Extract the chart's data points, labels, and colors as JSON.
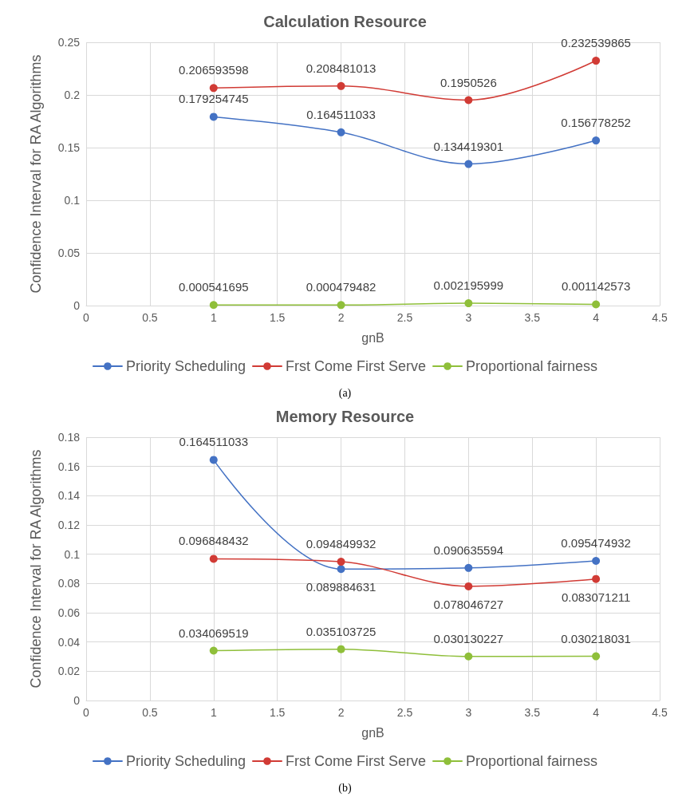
{
  "chart_data": [
    {
      "type": "line",
      "title": "Calculation Resource",
      "xlabel": "gnB",
      "ylabel": "Confidence Interval for RA Algorithms",
      "x": [
        1,
        2,
        3,
        4
      ],
      "xlim": [
        0,
        4.5
      ],
      "xticks": [
        0,
        0.5,
        1,
        1.5,
        2,
        2.5,
        3,
        3.5,
        4,
        4.5
      ],
      "ylim": [
        0,
        0.25
      ],
      "yticks": [
        0,
        0.05,
        0.1,
        0.15,
        0.2,
        0.25
      ],
      "grid": true,
      "legend": "bottom",
      "marker": "circle",
      "data_labels": true,
      "annotations": [
        "(a)"
      ],
      "series": [
        {
          "name": "Priority Scheduling",
          "color": "#4472c4",
          "values": [
            0.179254745,
            0.164511033,
            0.134419301,
            0.156778252
          ]
        },
        {
          "name": "Frst Come First Serve",
          "color": "#d13b35",
          "values": [
            0.206593598,
            0.208481013,
            0.1950526,
            0.232539865
          ]
        },
        {
          "name": "Proportional fairness",
          "color": "#8fbf3a",
          "values": [
            0.000541695,
            0.000479482,
            0.002195999,
            0.001142573
          ]
        }
      ]
    },
    {
      "type": "line",
      "title": "Memory Resource",
      "xlabel": "gnB",
      "ylabel": "Confidence Interval for RA Algorithms",
      "x": [
        1,
        2,
        3,
        4
      ],
      "xlim": [
        0,
        4.5
      ],
      "xticks": [
        0,
        0.5,
        1,
        1.5,
        2,
        2.5,
        3,
        3.5,
        4,
        4.5
      ],
      "ylim": [
        0,
        0.18
      ],
      "yticks": [
        0,
        0.02,
        0.04,
        0.06,
        0.08,
        0.1,
        0.12,
        0.14,
        0.16,
        0.18
      ],
      "grid": true,
      "legend": "bottom",
      "marker": "circle",
      "data_labels": true,
      "annotations": [
        "(b)"
      ],
      "series": [
        {
          "name": "Priority Scheduling",
          "color": "#4472c4",
          "values": [
            0.164511033,
            0.089884631,
            0.090635594,
            0.095474932
          ]
        },
        {
          "name": "Frst Come First Serve",
          "color": "#d13b35",
          "values": [
            0.096848432,
            0.094849932,
            0.078046727,
            0.083071211
          ]
        },
        {
          "name": "Proportional fairness",
          "color": "#8fbf3a",
          "values": [
            0.034069519,
            0.035103725,
            0.030130227,
            0.030218031
          ]
        }
      ]
    }
  ]
}
